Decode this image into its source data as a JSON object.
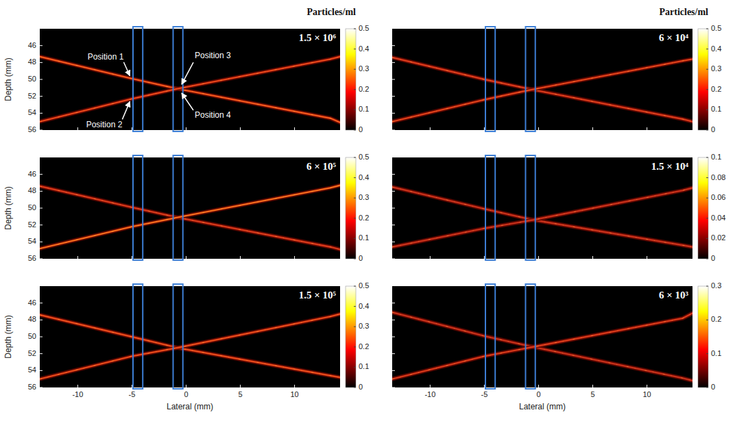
{
  "chart_data": [
    {
      "type": "line",
      "title": "1.5 × 10⁶",
      "colorbar_label": "Particles/ml",
      "y_label": "Depth (mm)",
      "xlim": [
        -13.5,
        14.2
      ],
      "ylim": [
        56,
        44
      ],
      "xticks": [
        -10,
        -5,
        0,
        5,
        10
      ],
      "yticks": [
        46,
        48,
        50,
        52,
        54,
        56
      ],
      "tick_labels": "y",
      "x": [
        -13.5,
        -5,
        -0.8,
        13.3,
        14.2
      ],
      "series": [
        {
          "color": "#f2541b",
          "values": [
            47.3,
            49.9,
            51.1,
            54.6,
            55.1
          ]
        },
        {
          "color": "#e8441a",
          "values": [
            55.0,
            52.3,
            51.1,
            47.6,
            47.3
          ]
        }
      ],
      "regions": [
        [
          -4.9,
          -4.0
        ],
        [
          -1.2,
          -0.3
        ]
      ],
      "annotations": [
        {
          "text": "Position 1",
          "x": -5,
          "y": 49.9
        },
        {
          "text": "Position 2",
          "x": -5,
          "y": 52.3
        },
        {
          "text": "Position 3",
          "x": -0.6,
          "y": 50.9
        },
        {
          "text": "Position 4",
          "x": -0.6,
          "y": 51.3
        }
      ],
      "colorbar": {
        "range": [
          0,
          0.5
        ],
        "ticks": [
          0,
          0.1,
          0.2,
          0.3,
          0.4,
          0.5
        ]
      }
    },
    {
      "type": "line",
      "title": "6 × 10⁴",
      "colorbar_label": "Particles/ml",
      "xlim": [
        -13.5,
        14.2
      ],
      "ylim": [
        56,
        44
      ],
      "xticks": [
        -10,
        -5,
        0,
        5,
        10
      ],
      "yticks": [
        46,
        48,
        50,
        52,
        54,
        56
      ],
      "tick_labels": false,
      "x": [
        -13.5,
        -5,
        -0.6,
        13.3,
        14.2
      ],
      "series": [
        {
          "color": "#d8381a",
          "values": [
            47.4,
            50.0,
            51.2,
            54.7,
            55.0
          ]
        },
        {
          "color": "#e0401a",
          "values": [
            55.0,
            52.4,
            51.2,
            47.8,
            47.6
          ]
        }
      ],
      "regions": [
        [
          -4.9,
          -4.0
        ],
        [
          -1.2,
          -0.3
        ]
      ],
      "colorbar": {
        "range": [
          0,
          0.5
        ],
        "ticks": [
          0,
          0.1,
          0.2,
          0.3,
          0.4,
          0.5
        ]
      }
    },
    {
      "type": "line",
      "title": "6 × 10⁵",
      "y_label": "Depth (mm)",
      "xlim": [
        -13.5,
        14.2
      ],
      "ylim": [
        56,
        44
      ],
      "xticks": [
        -10,
        -5,
        0,
        5,
        10
      ],
      "yticks": [
        46,
        48,
        50,
        52,
        54,
        56
      ],
      "tick_labels": "y",
      "x": [
        -13.5,
        -5,
        -0.8,
        13.3,
        14.2
      ],
      "series": [
        {
          "color": "#d8381a",
          "values": [
            47.4,
            49.9,
            51.1,
            54.6,
            54.9
          ]
        },
        {
          "color": "#f76a1c",
          "values": [
            54.8,
            52.2,
            51.1,
            47.6,
            47.3
          ]
        }
      ],
      "regions": [
        [
          -4.9,
          -4.0
        ],
        [
          -1.2,
          -0.3
        ]
      ],
      "colorbar": {
        "range": [
          0,
          0.5
        ],
        "ticks": [
          0,
          0.1,
          0.2,
          0.3,
          0.4,
          0.5
        ]
      }
    },
    {
      "type": "line",
      "title": "1.5 × 10⁴",
      "xlim": [
        -13.5,
        14.2
      ],
      "ylim": [
        56,
        44
      ],
      "xticks": [
        -10,
        -5,
        0,
        5,
        10
      ],
      "yticks": [
        46,
        48,
        50,
        52,
        54,
        56
      ],
      "tick_labels": false,
      "x": [
        -13.5,
        -5,
        -0.5,
        13.3,
        14.2
      ],
      "series": [
        {
          "color": "#c8301a",
          "values": [
            47.5,
            50.1,
            51.4,
            54.4,
            54.6
          ]
        },
        {
          "color": "#c8301a",
          "values": [
            54.6,
            52.4,
            51.4,
            47.9,
            47.6
          ]
        }
      ],
      "regions": [
        [
          -4.9,
          -4.0
        ],
        [
          -1.2,
          -0.3
        ]
      ],
      "colorbar": {
        "range": [
          0,
          0.1
        ],
        "ticks": [
          0,
          0.02,
          0.04,
          0.06,
          0.08,
          0.1
        ]
      }
    },
    {
      "type": "line",
      "title": "1.5 × 10⁵",
      "x_label": "Lateral (mm)",
      "y_label": "Depth (mm)",
      "xlim": [
        -13.5,
        14.2
      ],
      "ylim": [
        56,
        44
      ],
      "xticks": [
        -10,
        -5,
        0,
        5,
        10
      ],
      "yticks": [
        46,
        48,
        50,
        52,
        54,
        56
      ],
      "tick_labels": true,
      "x": [
        -13.5,
        -5,
        -0.8,
        13.3,
        14.2
      ],
      "series": [
        {
          "color": "#e8481a",
          "values": [
            47.4,
            50.0,
            51.3,
            54.6,
            54.8
          ]
        },
        {
          "color": "#e8481a",
          "values": [
            55.0,
            52.3,
            51.3,
            47.6,
            47.3
          ]
        }
      ],
      "regions": [
        [
          -4.9,
          -4.0
        ],
        [
          -1.2,
          -0.3
        ]
      ],
      "colorbar": {
        "range": [
          0,
          0.5
        ],
        "ticks": [
          0,
          0.1,
          0.2,
          0.3,
          0.4,
          0.5
        ]
      }
    },
    {
      "type": "line",
      "title": "6 × 10³",
      "x_label": "Lateral (mm)",
      "xlim": [
        -13.5,
        14.2
      ],
      "ylim": [
        56,
        44
      ],
      "xticks": [
        -10,
        -5,
        0,
        5,
        10
      ],
      "yticks": [
        46,
        48,
        50,
        52,
        54,
        56
      ],
      "tick_labels": "x",
      "x": [
        -13.5,
        -5,
        -0.5,
        13.3,
        14.2
      ],
      "series": [
        {
          "color": "#c8301a",
          "values": [
            47.1,
            49.9,
            51.2,
            54.9,
            55.2
          ]
        },
        {
          "color": "#d8381a",
          "values": [
            55.0,
            52.3,
            51.2,
            47.8,
            47.2
          ]
        }
      ],
      "regions": [
        [
          -4.9,
          -4.0
        ],
        [
          -1.2,
          -0.3
        ]
      ],
      "colorbar": {
        "range": [
          0,
          0.3
        ],
        "ticks": [
          0,
          0.1,
          0.2,
          0.3
        ]
      }
    }
  ]
}
